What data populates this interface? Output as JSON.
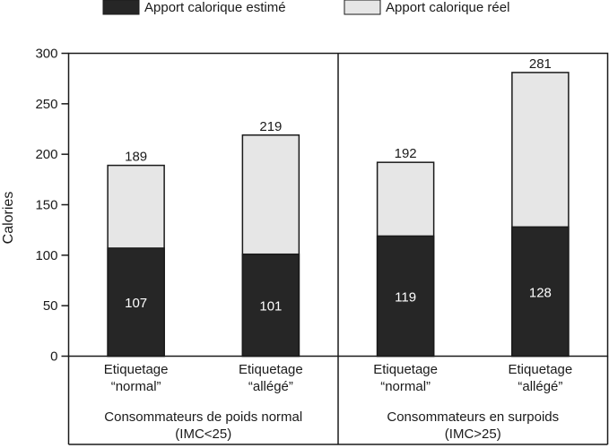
{
  "chart_data": {
    "type": "bar",
    "stacked": true,
    "ylabel": "Calories",
    "ylim": [
      0,
      300
    ],
    "yticks": [
      0,
      50,
      100,
      150,
      200,
      250,
      300
    ],
    "legend": {
      "placement": "top",
      "entries": [
        "Apport calorique estimé",
        "Apport calorique réel"
      ]
    },
    "colors": {
      "estimated": "#262626",
      "real": "#e6e6e6",
      "axis": "#1a1a1a"
    },
    "groups": [
      {
        "label_line1": "Consommateurs de poids normal",
        "label_line2": "(IMC<25)",
        "bars": [
          {
            "label_line1": "Etiquetage",
            "label_line2": "“normal”",
            "estimated": 107,
            "real": 189
          },
          {
            "label_line1": "Etiquetage",
            "label_line2": "“allégé”",
            "estimated": 101,
            "real": 219
          }
        ]
      },
      {
        "label_line1": "Consommateurs en surpoids",
        "label_line2": "(IMC>25)",
        "bars": [
          {
            "label_line1": "Etiquetage",
            "label_line2": "“normal”",
            "estimated": 119,
            "real": 192
          },
          {
            "label_line1": "Etiquetage",
            "label_line2": "“allégé”",
            "estimated": 128,
            "real": 281
          }
        ]
      }
    ]
  }
}
